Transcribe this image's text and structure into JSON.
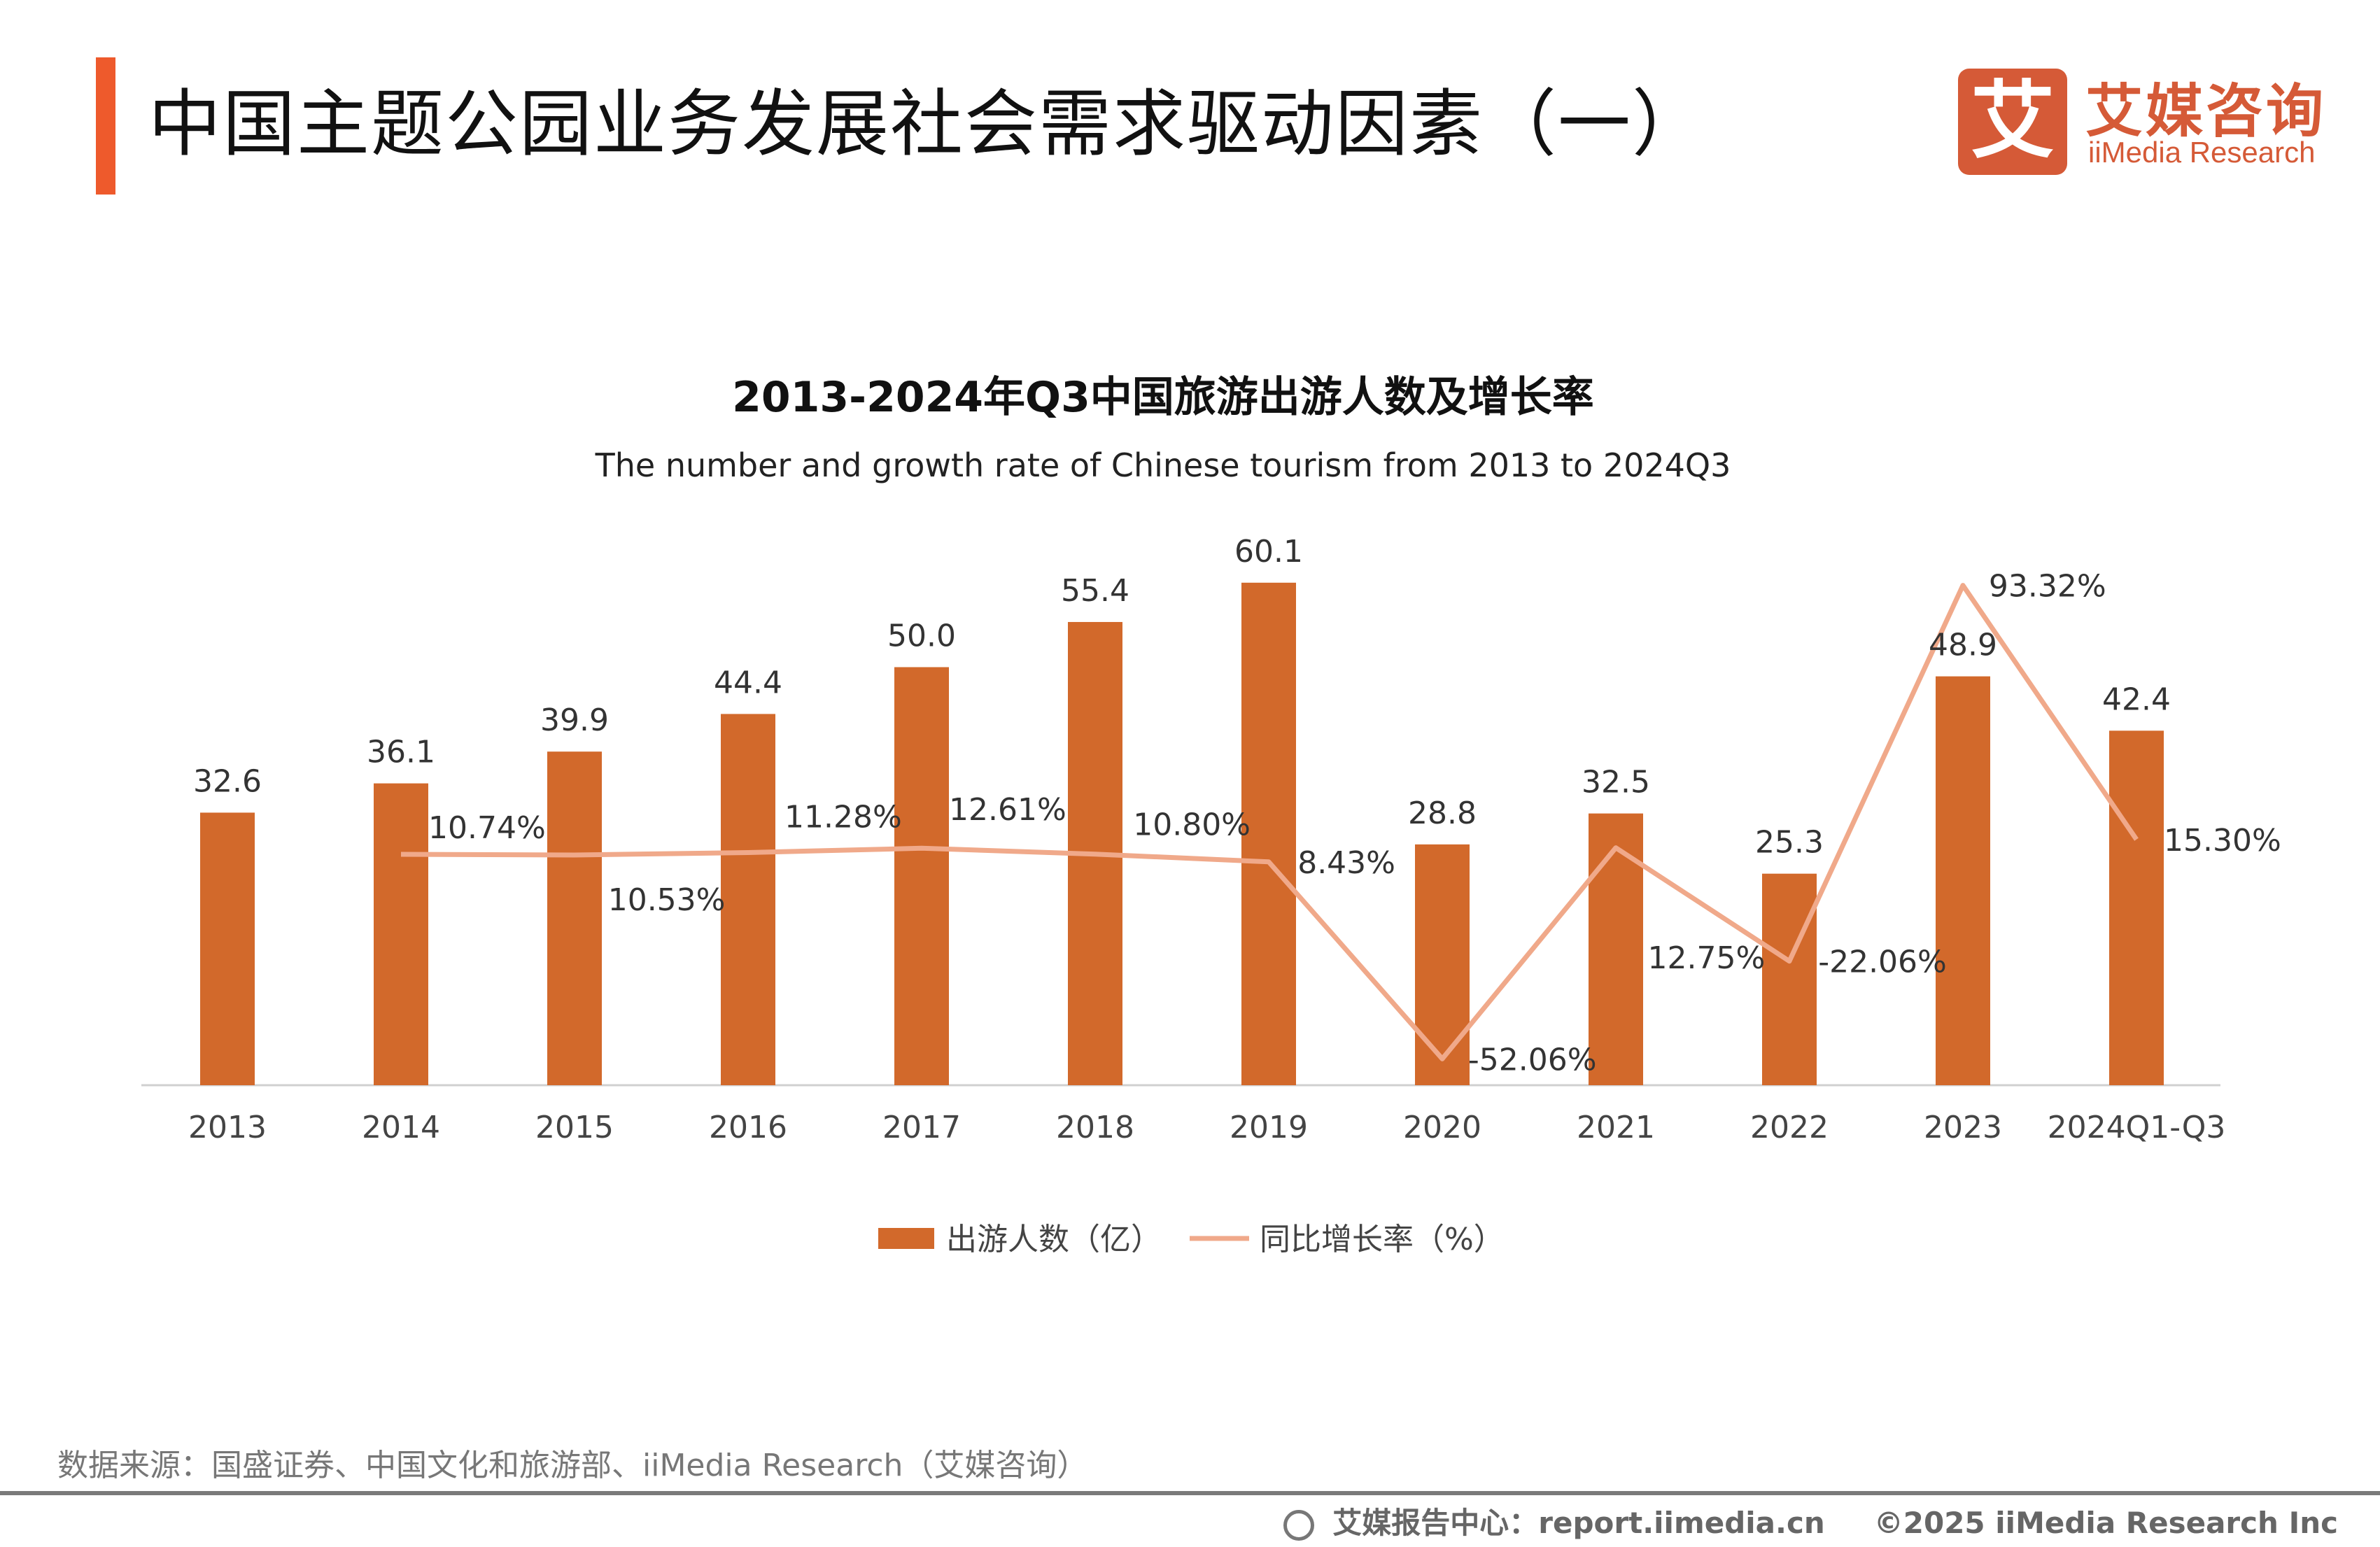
{
  "header": {
    "title": "中国主题公园业务发展社会需求驱动因素（一）",
    "accent_color": "#EE5A2C"
  },
  "logo": {
    "mark": "艾",
    "cn": "艾媒咨询",
    "en": "iiMedia Research",
    "color": "#D55A37"
  },
  "chart_data": {
    "type": "bar+line",
    "title": "2013-2024年Q3中国旅游出游人数及增长率",
    "subtitle": "The number and growth rate of Chinese tourism from 2013 to 2024Q3",
    "categories": [
      "2013",
      "2014",
      "2015",
      "2016",
      "2017",
      "2018",
      "2019",
      "2020",
      "2021",
      "2022",
      "2023",
      "2024Q1-Q3"
    ],
    "series": [
      {
        "name": "出游人数（亿）",
        "type": "bar",
        "color": "#D2692B",
        "values": [
          32.6,
          36.1,
          39.9,
          44.4,
          50.0,
          55.4,
          60.1,
          28.8,
          32.5,
          25.3,
          48.9,
          42.4
        ],
        "labels": [
          "32.6",
          "36.1",
          "39.9",
          "44.4",
          "50.0",
          "55.4",
          "60.1",
          "28.8",
          "32.5",
          "25.3",
          "48.9",
          "42.4"
        ]
      },
      {
        "name": "同比增长率（%）",
        "type": "line",
        "color": "#F0A98A",
        "values": [
          null,
          10.74,
          10.53,
          11.28,
          12.61,
          10.8,
          8.43,
          -52.06,
          12.75,
          -22.06,
          93.32,
          15.3
        ],
        "labels": [
          "",
          "10.74%",
          "10.53%",
          "11.28%",
          "12.61%",
          "10.80%",
          "8.43%",
          "-52.06%",
          "12.75%",
          "-22.06%",
          "93.32%",
          "15.30%"
        ]
      }
    ],
    "legend": "bottom",
    "grid": false
  },
  "footer": {
    "source": "数据来源：国盛证券、中国文化和旅游部、iiMedia Research（艾媒咨询）",
    "report_center": "艾媒报告中心：report.iimedia.cn",
    "copyright": "©2025  iiMedia Research  Inc"
  }
}
